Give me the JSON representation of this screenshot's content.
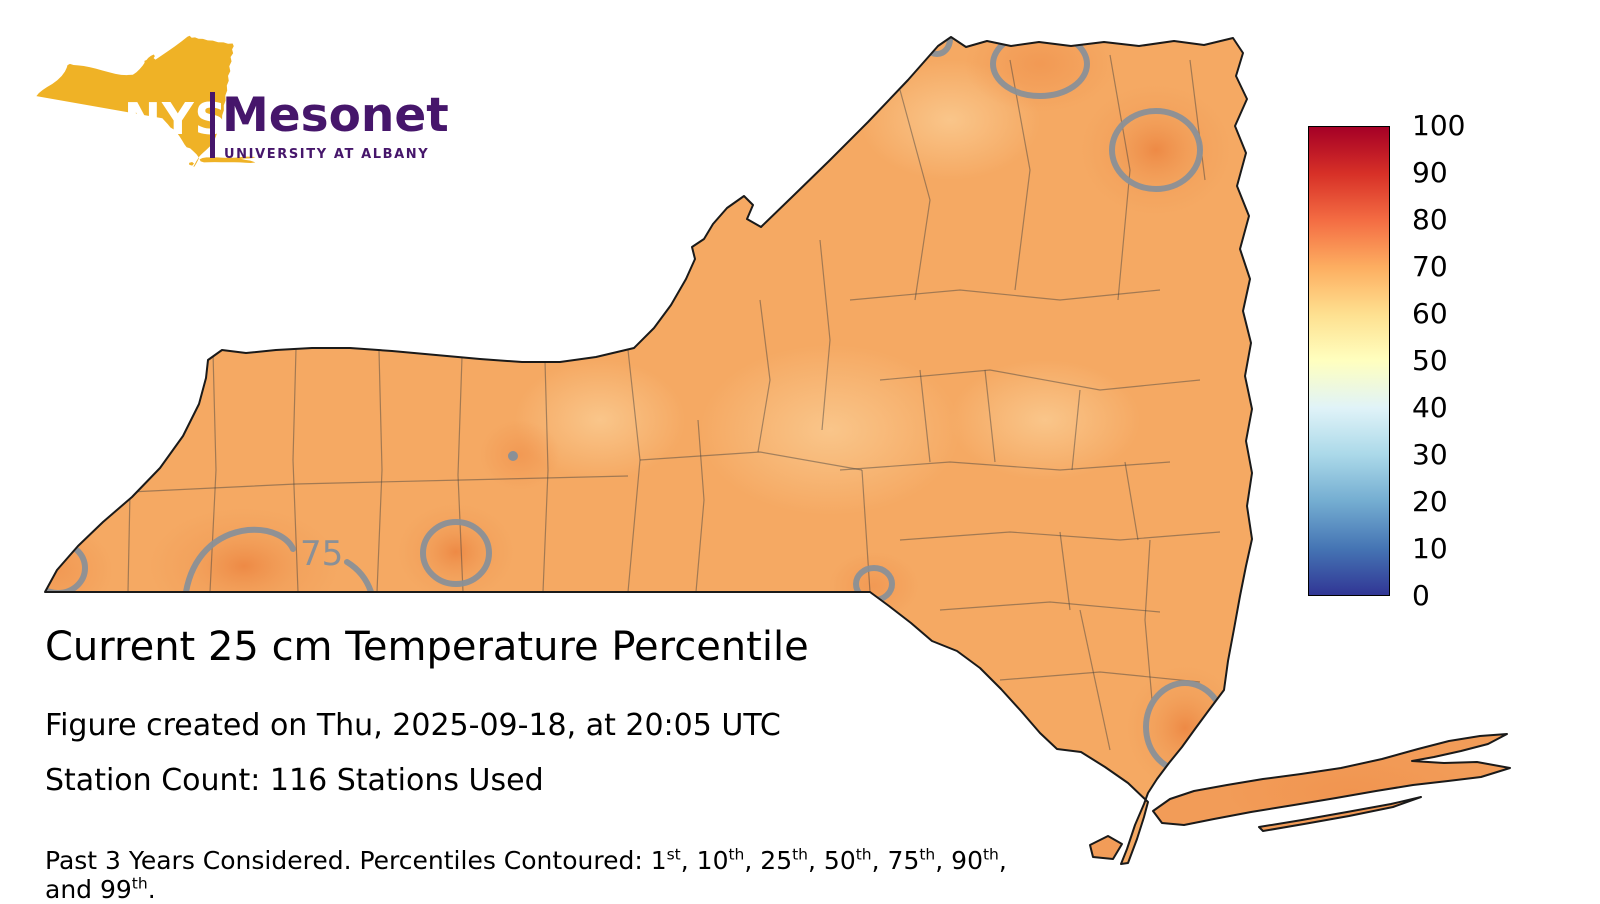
{
  "logo": {
    "nys": "NYS",
    "mesonet": "Mesonet",
    "subtitle": "UNIVERSITY AT ALBANY",
    "gold": "#EFB226",
    "purple": "#46166B"
  },
  "map": {
    "region": "New York State with county boundaries",
    "contour_label": "75",
    "base_color": "#F5A963",
    "contour_color": "#8A9097"
  },
  "colorbar": {
    "min": 0,
    "max": 100,
    "ticks": [
      100,
      90,
      80,
      70,
      60,
      50,
      40,
      30,
      20,
      10,
      0
    ],
    "stops": [
      {
        "value": 0,
        "color": "#313695"
      },
      {
        "value": 10,
        "color": "#4575b4"
      },
      {
        "value": 20,
        "color": "#74add1"
      },
      {
        "value": 30,
        "color": "#abd9e9"
      },
      {
        "value": 40,
        "color": "#e0f3f8"
      },
      {
        "value": 50,
        "color": "#ffffbf"
      },
      {
        "value": 60,
        "color": "#fee090"
      },
      {
        "value": 70,
        "color": "#fdae61"
      },
      {
        "value": 80,
        "color": "#f46d43"
      },
      {
        "value": 90,
        "color": "#d73027"
      },
      {
        "value": 100,
        "color": "#a50026"
      }
    ]
  },
  "caption": {
    "title": "Current 25 cm Temperature Percentile",
    "created": "Figure created on Thu, 2025-09-18, at 20:05 UTC",
    "station_count": "Station Count: 116 Stations Used",
    "footnote_prefix": "Past 3 Years Considered. Percentiles Contoured: ",
    "percentiles": [
      {
        "num": "1",
        "suffix": "st",
        "sep": ", "
      },
      {
        "num": "10",
        "suffix": "th",
        "sep": ", "
      },
      {
        "num": "25",
        "suffix": "th",
        "sep": ", "
      },
      {
        "num": "50",
        "suffix": "th",
        "sep": ", "
      },
      {
        "num": "75",
        "suffix": "th",
        "sep": ", "
      },
      {
        "num": "90",
        "suffix": "th",
        "sep": ", and "
      },
      {
        "num": "99",
        "suffix": "th",
        "sep": "."
      }
    ]
  },
  "chart_data": {
    "type": "heatmap",
    "title": "Current 25 cm Temperature Percentile",
    "geography": "New York State, county boundaries drawn",
    "variable": "25 cm soil temperature percentile",
    "colorbar_range": [
      0,
      100
    ],
    "colorbar_ticks": [
      0,
      10,
      20,
      30,
      40,
      50,
      60,
      70,
      80,
      90,
      100
    ],
    "colormap_stops": [
      {
        "value": 0,
        "color": "#313695"
      },
      {
        "value": 10,
        "color": "#4575b4"
      },
      {
        "value": 20,
        "color": "#74add1"
      },
      {
        "value": 30,
        "color": "#abd9e9"
      },
      {
        "value": 40,
        "color": "#e0f3f8"
      },
      {
        "value": 50,
        "color": "#ffffbf"
      },
      {
        "value": 60,
        "color": "#fee090"
      },
      {
        "value": 70,
        "color": "#fdae61"
      },
      {
        "value": 80,
        "color": "#f46d43"
      },
      {
        "value": 90,
        "color": "#d73027"
      },
      {
        "value": 100,
        "color": "#a50026"
      }
    ],
    "legend_position": "right",
    "displayed_value_range_estimate": [
      65,
      80
    ],
    "labeled_contour_level": 75,
    "contoured_percentiles": [
      1,
      10,
      25,
      50,
      75,
      90,
      99
    ],
    "station_count": 116,
    "created_utc": "Thu, 2025-09-18, at 20:05 UTC"
  }
}
